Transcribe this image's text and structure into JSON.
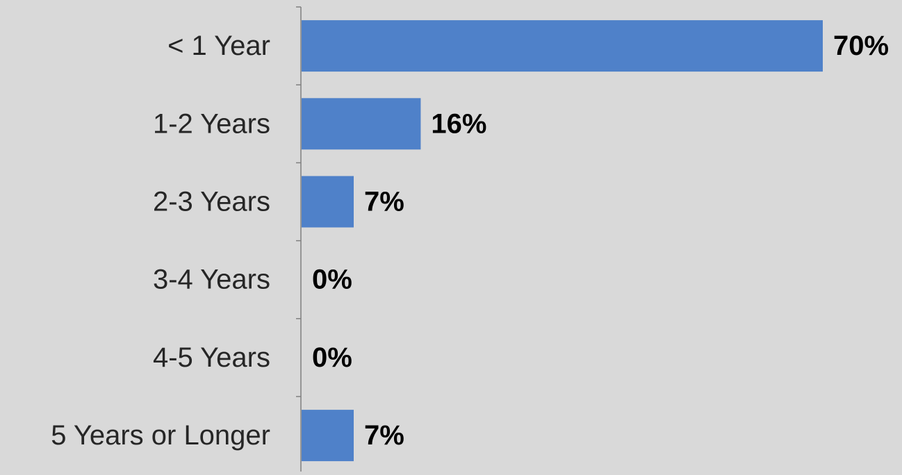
{
  "chart_data": {
    "type": "bar",
    "orientation": "horizontal",
    "categories": [
      "< 1 Year",
      "1-2 Years",
      "2-3 Years",
      "3-4 Years",
      "4-5 Years",
      "5 Years or Longer"
    ],
    "values": [
      70,
      16,
      7,
      0,
      0,
      7
    ],
    "value_labels": [
      "70%",
      "16%",
      "7%",
      "0%",
      "0%",
      "7%"
    ],
    "xlim": [
      0,
      70
    ],
    "grid": false,
    "legend": "none",
    "bar_color": "#4f81c9",
    "background_color": "#d9d9d9"
  }
}
